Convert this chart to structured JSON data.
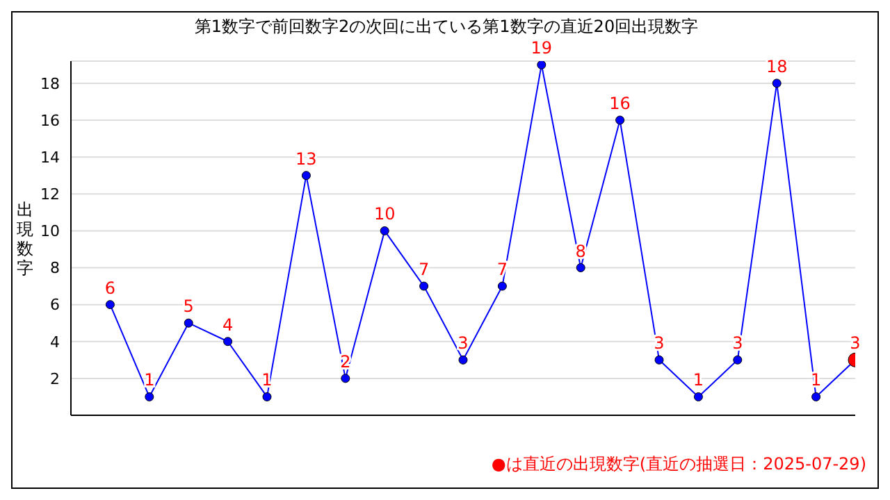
{
  "chart_data": {
    "type": "line",
    "title": "第1数字で前回数字2の次回に出ている第1数字の直近20回出現数字",
    "ylabel": "出現数字",
    "categories": [
      null,
      null,
      null,
      null,
      null,
      null,
      null,
      null,
      null,
      null,
      null,
      null,
      null,
      null,
      null,
      null,
      null,
      null,
      null,
      null
    ],
    "series": [
      {
        "color": "#0000ff",
        "values": [
          6,
          1,
          5,
          4,
          1,
          13,
          2,
          10,
          7,
          3,
          7,
          19,
          8,
          16,
          3,
          1,
          3,
          18,
          1,
          3
        ],
        "colors": [
          "#0000ff",
          "#0000ff",
          "#0000ff",
          "#0000ff",
          "#0000ff",
          "#0000ff",
          "#0000ff",
          "#0000ff",
          "#0000ff",
          "#0000ff",
          "#0000ff",
          "#0000ff",
          "#0000ff",
          "#0000ff",
          "#0000ff",
          "#0000ff",
          "#0000ff",
          "#0000ff",
          "#0000ff",
          "#ff0000"
        ]
      }
    ],
    "ylim": [
      0,
      19.2
    ],
    "yticks": [
      2,
      4,
      6,
      8,
      10,
      12,
      14,
      16,
      18
    ],
    "grid": "y",
    "marker": "circle",
    "data_labels": true,
    "annotations": [
      "●は直近の出現数字(直近の抽選日：2025-07-29)"
    ]
  }
}
